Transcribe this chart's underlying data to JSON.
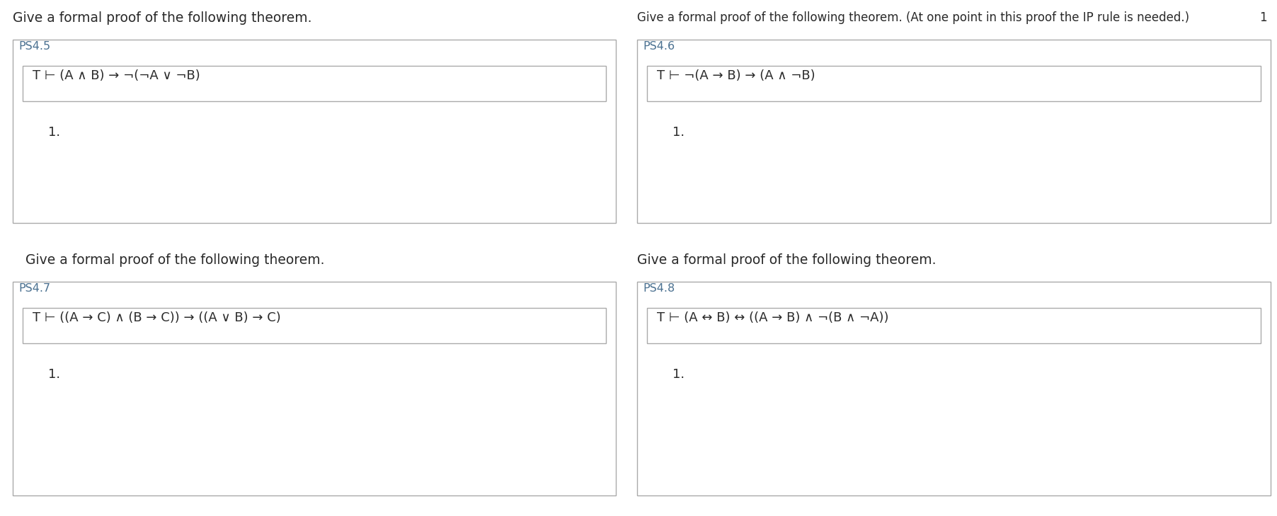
{
  "bg_color": "#ffffff",
  "text_color": "#2a2a2a",
  "header_color": "#2a2a2a",
  "label_color": "#4a7090",
  "box_border_color": "#aaaaaa",
  "inner_border_color": "#aaaaaa",
  "top_left_header": "Give a formal proof of the following theorem.",
  "top_right_header": "Give a formal proof of the following theorem. (At one point in this proof the IP rule is needed.)",
  "bottom_left_header": "Give a formal proof of the following theorem.",
  "bottom_right_header": "Give a formal proof of the following theorem.",
  "ps45_label": "PS4.5",
  "ps45_formula": "T ⊢ (A ∧ B) → ¬(¬A ∨ ¬B)",
  "ps45_item": "1.",
  "ps46_label": "PS4.6",
  "ps46_formula": "T ⊢ ¬(A → B) → (A ∧ ¬B)",
  "ps46_item": "1.",
  "ps46_page": "1",
  "ps47_label": "PS4.7",
  "ps47_formula": "T ⊢ ((A → C) ∧ (B → C)) → ((A ∨ B) → C)",
  "ps47_item": "1.",
  "ps48_label": "PS4.8",
  "ps48_formula": "T ⊢ (A ↔ B) ↔ ((A → B) ∧ ¬(B ∧ ¬A))",
  "ps48_item": "1."
}
